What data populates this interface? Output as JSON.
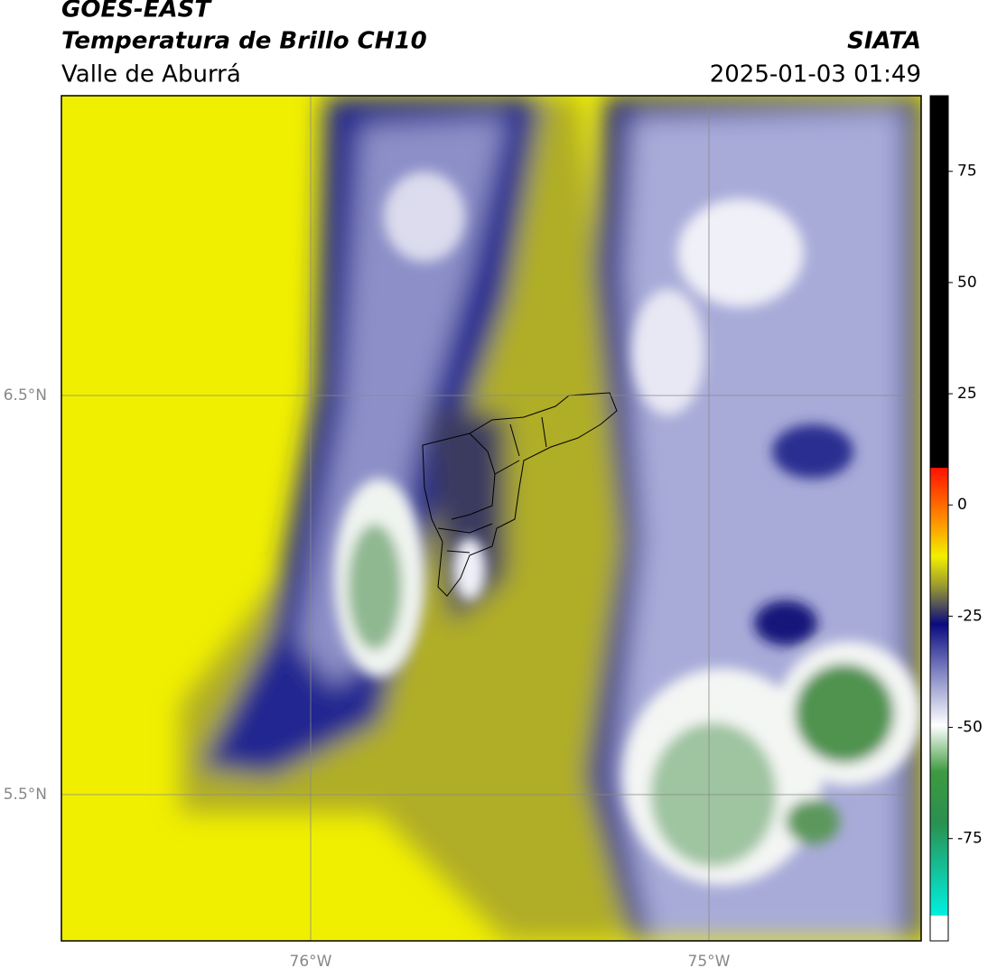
{
  "header": {
    "title": "GOES-EAST",
    "product": "Temperatura de Brillo CH10",
    "source": "SIATA",
    "region": "Valle de Aburrá",
    "datetime": "2025-01-03 01:49"
  },
  "map": {
    "lat_labels": [
      "6.5°N",
      "5.5°N"
    ],
    "lon_labels": [
      "76°W",
      "75°W"
    ]
  },
  "colorbar": {
    "lim": [
      -98,
      92
    ],
    "ticks": [
      75,
      50,
      25,
      0,
      -25,
      -50,
      -75
    ]
  }
}
